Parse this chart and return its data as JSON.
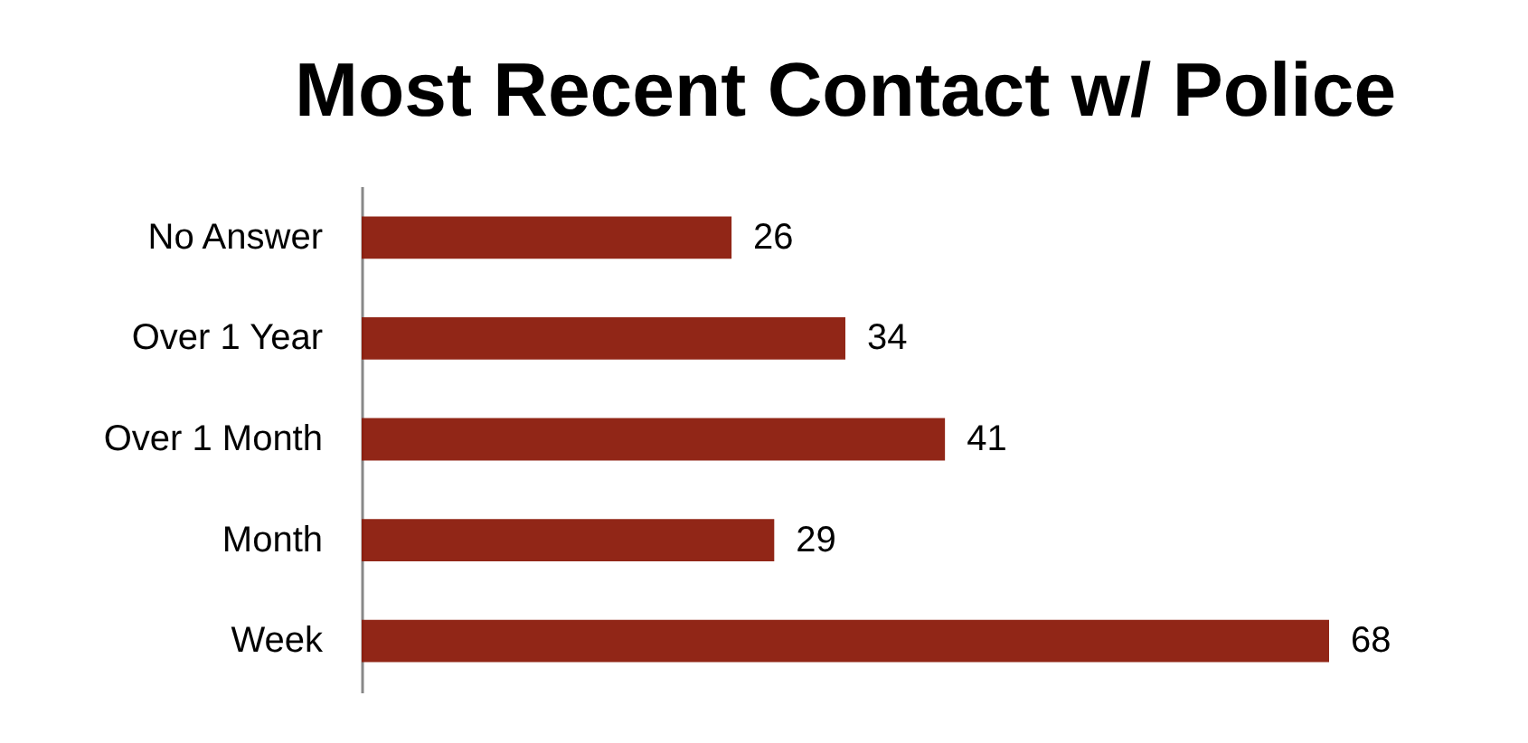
{
  "chart_data": {
    "type": "bar",
    "orientation": "horizontal",
    "title": "Most Recent Contact w/ Police",
    "categories": [
      "No Answer",
      "Over 1 Year",
      "Over 1 Month",
      "Month",
      "Week"
    ],
    "values": [
      26,
      34,
      41,
      29,
      68
    ],
    "color": "#8b1a0b",
    "data_labels": true
  }
}
